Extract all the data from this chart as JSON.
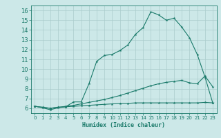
{
  "xlabel": "Humidex (Indice chaleur)",
  "bg_color": "#cce8e8",
  "grid_color": "#aacccc",
  "line_color": "#1a7a6a",
  "xlim": [
    -0.5,
    23.5
  ],
  "ylim": [
    5.5,
    16.5
  ],
  "xticks": [
    0,
    1,
    2,
    3,
    4,
    5,
    6,
    7,
    8,
    9,
    10,
    11,
    12,
    13,
    14,
    15,
    16,
    17,
    18,
    19,
    20,
    21,
    22,
    23
  ],
  "yticks": [
    6,
    7,
    8,
    9,
    10,
    11,
    12,
    13,
    14,
    15,
    16
  ],
  "curve1_x": [
    0,
    1,
    2,
    3,
    4,
    5,
    6,
    7,
    8,
    9,
    10,
    11,
    12,
    13,
    14,
    15,
    16,
    17,
    18,
    19,
    20,
    21,
    22,
    23
  ],
  "curve1_y": [
    6.2,
    6.05,
    5.85,
    6.05,
    6.15,
    6.65,
    6.65,
    8.5,
    10.8,
    11.4,
    11.5,
    11.9,
    12.45,
    13.55,
    14.25,
    15.85,
    15.55,
    15.0,
    15.2,
    14.3,
    13.2,
    11.5,
    9.2,
    6.55
  ],
  "curve2_x": [
    0,
    1,
    2,
    3,
    4,
    5,
    6,
    7,
    8,
    9,
    10,
    11,
    12,
    13,
    14,
    15,
    16,
    17,
    18,
    19,
    20,
    21,
    22,
    23
  ],
  "curve2_y": [
    6.2,
    6.1,
    6.0,
    6.1,
    6.2,
    6.3,
    6.45,
    6.6,
    6.75,
    6.9,
    7.1,
    7.3,
    7.55,
    7.8,
    8.05,
    8.3,
    8.5,
    8.65,
    8.75,
    8.85,
    8.6,
    8.5,
    9.3,
    8.2
  ],
  "curve3_x": [
    0,
    1,
    2,
    3,
    4,
    5,
    6,
    7,
    8,
    9,
    10,
    11,
    12,
    13,
    14,
    15,
    16,
    17,
    18,
    19,
    20,
    21,
    22,
    23
  ],
  "curve3_y": [
    6.2,
    6.1,
    6.0,
    6.1,
    6.15,
    6.2,
    6.25,
    6.3,
    6.35,
    6.4,
    6.45,
    6.5,
    6.5,
    6.55,
    6.55,
    6.55,
    6.55,
    6.55,
    6.55,
    6.55,
    6.55,
    6.55,
    6.6,
    6.55
  ]
}
